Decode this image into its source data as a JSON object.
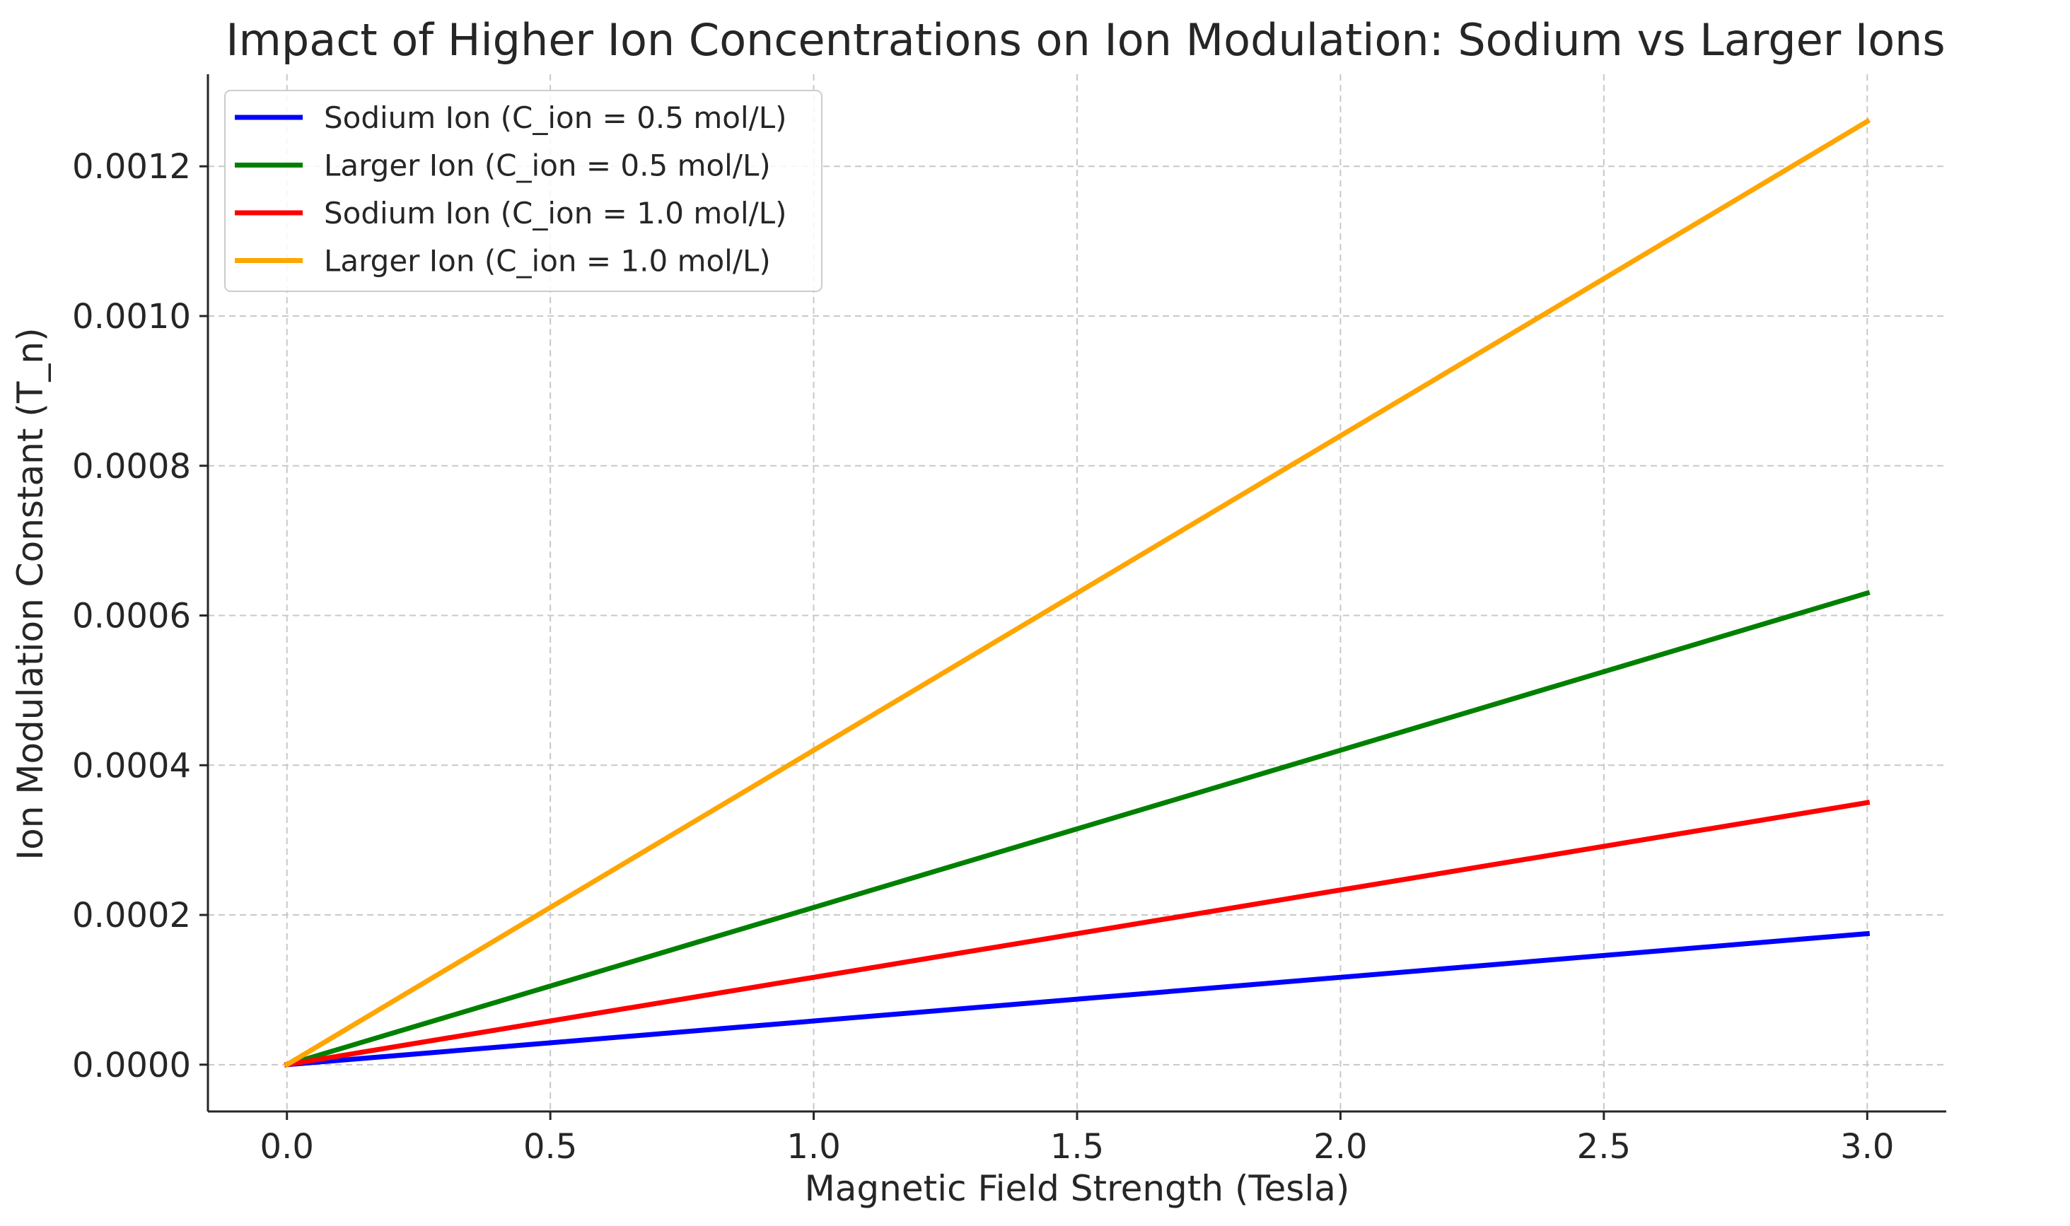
{
  "chart_data": {
    "type": "line",
    "title": "Impact of Higher Ion Concentrations on Ion Modulation: Sodium vs Larger Ions",
    "xlabel": "Magnetic Field Strength (Tesla)",
    "ylabel": "Ion Modulation Constant (T_n)",
    "xlim": [
      -0.15,
      3.15
    ],
    "ylim": [
      -6.25e-05,
      0.001323
    ],
    "x": [
      0.0,
      3.0
    ],
    "x_ticks": [
      0.0,
      0.5,
      1.0,
      1.5,
      2.0,
      2.5,
      3.0
    ],
    "x_tick_labels": [
      "0.0",
      "0.5",
      "1.0",
      "1.5",
      "2.0",
      "2.5",
      "3.0"
    ],
    "y_ticks": [
      0.0,
      0.0002,
      0.0004,
      0.0006,
      0.0008,
      0.001,
      0.0012
    ],
    "y_tick_labels": [
      "0.0000",
      "0.0002",
      "0.0004",
      "0.0006",
      "0.0008",
      "0.0010",
      "0.0012"
    ],
    "grid": true,
    "legend_position": "upper-left",
    "series": [
      {
        "name": "Sodium Ion (C_ion = 0.5 mol/L)",
        "color": "#0000ff",
        "values": [
          0.0,
          0.000175
        ]
      },
      {
        "name": "Larger Ion (C_ion = 0.5 mol/L)",
        "color": "#008000",
        "values": [
          0.0,
          0.00063
        ]
      },
      {
        "name": "Sodium Ion (C_ion = 1.0 mol/L)",
        "color": "#ff0000",
        "values": [
          0.0,
          0.00035
        ]
      },
      {
        "name": "Larger Ion (C_ion = 1.0 mol/L)",
        "color": "#ffa500",
        "values": [
          0.0,
          0.00126
        ]
      }
    ]
  }
}
